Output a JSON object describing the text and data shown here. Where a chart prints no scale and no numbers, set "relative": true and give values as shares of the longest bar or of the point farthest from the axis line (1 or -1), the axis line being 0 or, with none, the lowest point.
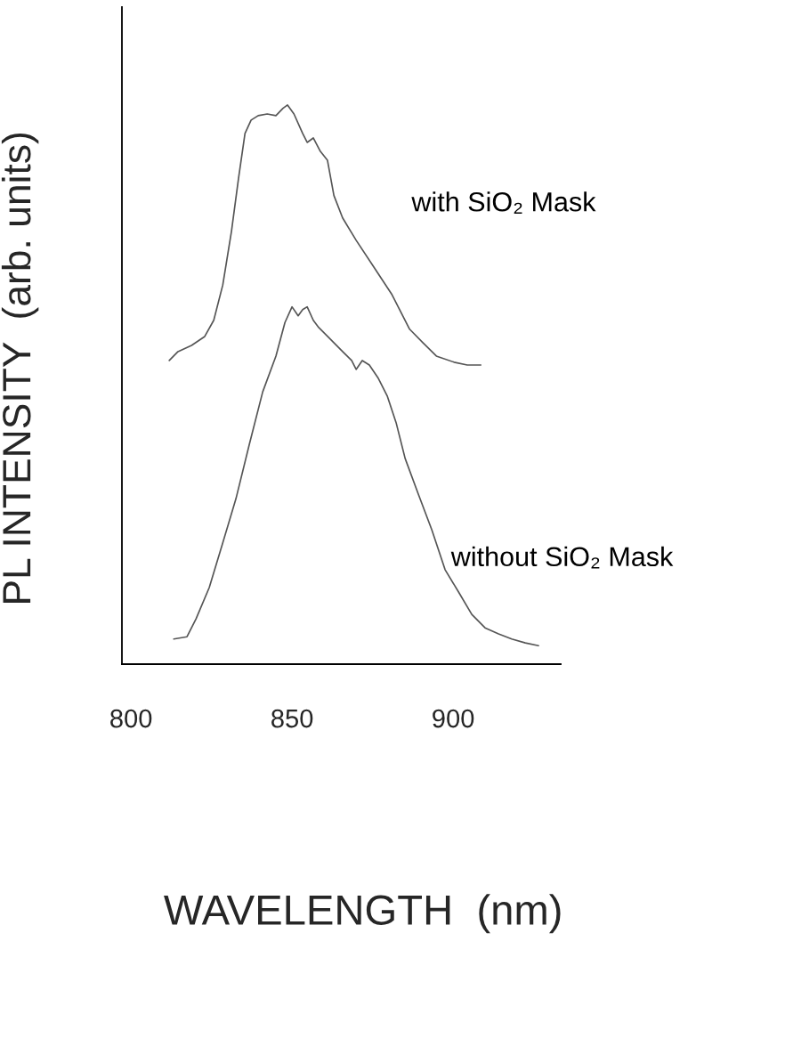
{
  "chart_data": {
    "type": "line",
    "relative": true,
    "xlabel": "WAVELENGTH  (nm)",
    "ylabel": "PL INTENSITY  (arb. units)",
    "xlim": [
      797.2,
      933.4
    ],
    "xticks": [
      800,
      850,
      900
    ],
    "legend": false,
    "grid": false,
    "marker": "none",
    "line_style": "solid",
    "series": [
      {
        "name": "with SiO₂ Mask",
        "color": "#555555",
        "x": [
          811.9,
          814.6,
          818.8,
          822.9,
          825.7,
          828.5,
          831.2,
          833.4,
          835.4,
          837.3,
          839.5,
          842.3,
          845.0,
          847.2,
          848.6,
          850.6,
          853.3,
          854.7,
          856.6,
          858.8,
          861.0,
          863.0,
          865.7,
          869.9,
          875.4,
          880.9,
          886.5,
          890.6,
          894.8,
          900.3,
          904.4,
          908.6
        ],
        "values": [
          0.543,
          0.559,
          0.57,
          0.586,
          0.615,
          0.678,
          0.774,
          0.869,
          0.949,
          0.973,
          0.981,
          0.984,
          0.981,
          0.994,
          1.0,
          0.984,
          0.949,
          0.933,
          0.941,
          0.917,
          0.901,
          0.838,
          0.798,
          0.758,
          0.71,
          0.662,
          0.599,
          0.575,
          0.551,
          0.54,
          0.535,
          0.535
        ]
      },
      {
        "name": "without SiO₂ Mask",
        "color": "#555555",
        "x": [
          813.3,
          817.4,
          820.2,
          824.3,
          828.5,
          832.6,
          836.7,
          840.9,
          845.0,
          847.8,
          850.0,
          851.9,
          853.3,
          854.7,
          856.6,
          858.3,
          861.6,
          865.7,
          868.5,
          869.9,
          871.8,
          874.0,
          876.8,
          879.6,
          882.3,
          885.1,
          889.2,
          893.4,
          897.5,
          901.7,
          905.8,
          909.9,
          914.1,
          918.2,
          922.4,
          926.5
        ],
        "values": [
          0.045,
          0.049,
          0.081,
          0.137,
          0.217,
          0.296,
          0.392,
          0.487,
          0.551,
          0.611,
          0.639,
          0.623,
          0.634,
          0.639,
          0.615,
          0.602,
          0.583,
          0.559,
          0.543,
          0.527,
          0.543,
          0.535,
          0.511,
          0.479,
          0.432,
          0.368,
          0.304,
          0.24,
          0.169,
          0.129,
          0.089,
          0.065,
          0.054,
          0.045,
          0.038,
          0.033
        ]
      }
    ]
  }
}
